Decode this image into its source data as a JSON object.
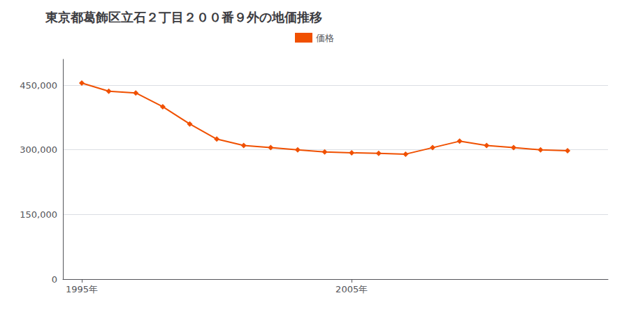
{
  "chart_data": {
    "type": "line",
    "title": "東京都葛飾区立石２丁目２００番９外の地価推移",
    "series": [
      {
        "name": "価格",
        "color": "#f05000",
        "marker": "diamond",
        "values": [
          455000,
          436000,
          432000,
          400000,
          360000,
          325000,
          310000,
          305000,
          300000,
          295000,
          293000,
          292000,
          290000,
          305000,
          320000,
          310000,
          305000,
          300000,
          298000
        ]
      }
    ],
    "x": [
      1995,
      1996,
      1997,
      1998,
      1999,
      2000,
      2001,
      2002,
      2003,
      2004,
      2005,
      2006,
      2007,
      2008,
      2009,
      2010,
      2011,
      2012,
      2013
    ],
    "xlim": [
      1994.3,
      2014.5
    ],
    "xticks": [
      {
        "value": 1995,
        "label": "1995年"
      },
      {
        "value": 2005,
        "label": "2005年"
      }
    ],
    "ylim": [
      0,
      510000
    ],
    "yticks": [
      0,
      {
        "value": 150000,
        "label": "150,000"
      },
      {
        "value": 300000,
        "label": "300,000"
      },
      {
        "value": 450000,
        "label": "450,000"
      }
    ],
    "grid": true,
    "legend": "top"
  }
}
